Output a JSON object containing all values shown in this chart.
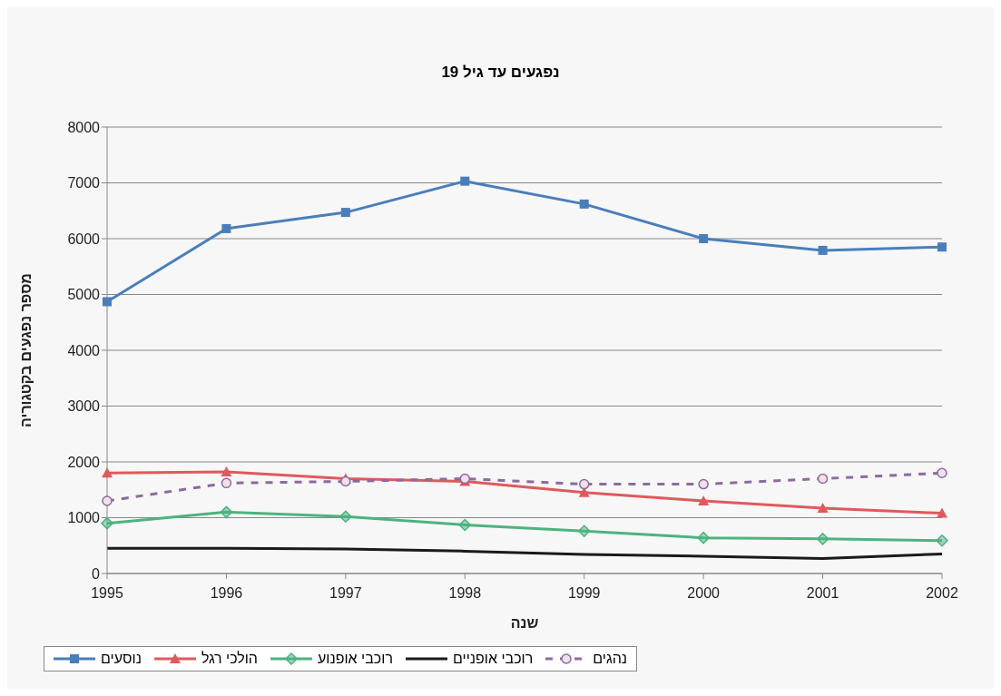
{
  "chart_data": {
    "type": "line",
    "title": "נפגעים עד גיל 19",
    "xlabel": "שנה",
    "ylabel": "מספר נפגעים בקטגוריה",
    "categories": [
      "1995",
      "1996",
      "1997",
      "1998",
      "1999",
      "2000",
      "2001",
      "2002"
    ],
    "series": [
      {
        "name": "נוסעים",
        "color": "#4a7ebb",
        "marker": "square",
        "values": [
          4870,
          6180,
          6470,
          7030,
          6620,
          6000,
          5790,
          5850
        ]
      },
      {
        "name": "הולכי רגל",
        "color": "#e0595c",
        "marker": "triangle",
        "values": [
          1800,
          1820,
          1700,
          1650,
          1450,
          1300,
          1170,
          1080
        ]
      },
      {
        "name": "רוכבי אופנוע",
        "color": "#4cb380",
        "marker": "diamond",
        "values": [
          900,
          1100,
          1020,
          870,
          760,
          640,
          620,
          590
        ]
      },
      {
        "name": "רוכבי אופניים",
        "color": "#1a1a1a",
        "marker": "none",
        "values": [
          450,
          450,
          440,
          400,
          340,
          310,
          270,
          350
        ]
      },
      {
        "name": "נהגים",
        "color": "#8c6a9e",
        "marker": "circle",
        "line_style": "dashed",
        "values": [
          1300,
          1620,
          1650,
          1700,
          1600,
          1600,
          1700,
          1800
        ]
      }
    ],
    "ylim": [
      0,
      8000
    ],
    "yticks": [
      0,
      1000,
      2000,
      3000,
      4000,
      5000,
      6000,
      7000,
      8000
    ],
    "grid": "y",
    "legend": "bottom"
  }
}
